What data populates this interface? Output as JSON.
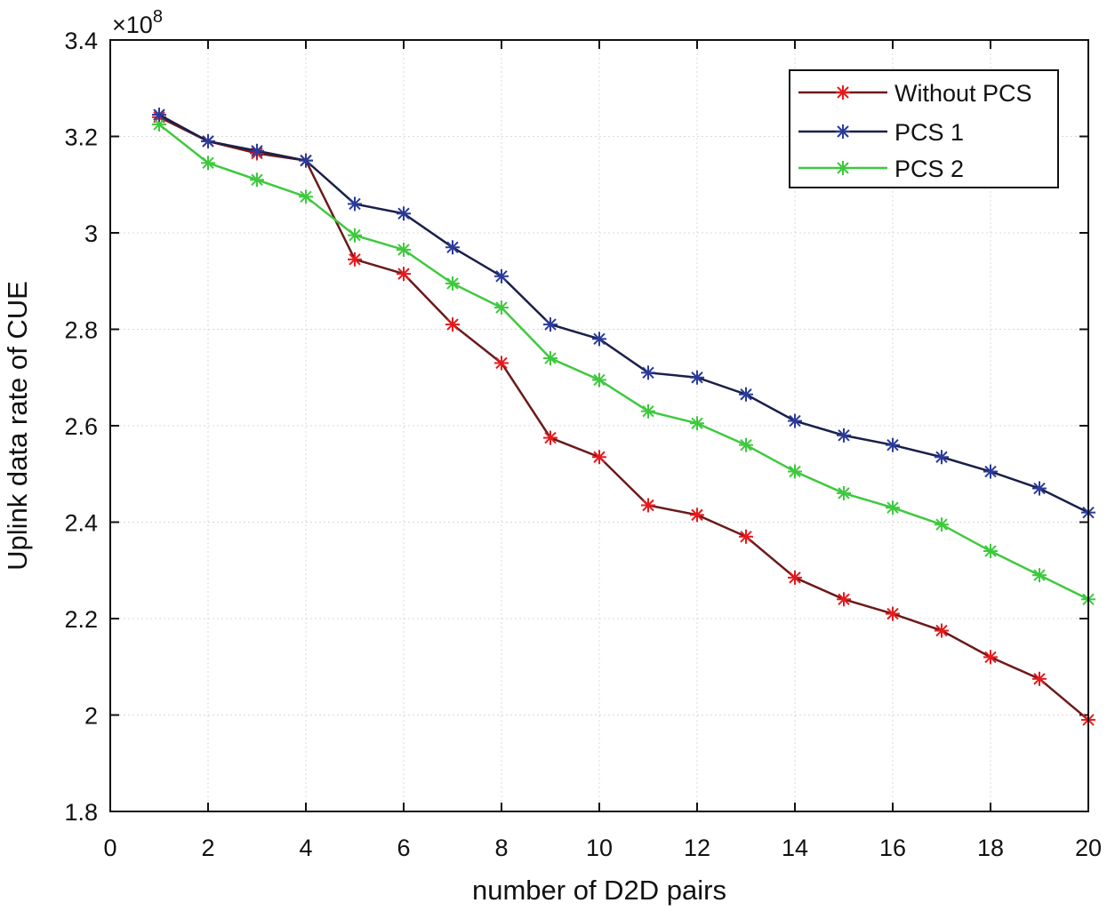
{
  "chart_data": {
    "type": "line",
    "title": "",
    "xlabel": "number of D2D pairs",
    "ylabel": "Uplink data rate of CUE",
    "y_multiplier_base": "×10",
    "y_multiplier_exp": "8",
    "xlim": [
      0,
      20
    ],
    "ylim": [
      1.8,
      3.4
    ],
    "xticks": [
      0,
      2,
      4,
      6,
      8,
      10,
      12,
      14,
      16,
      18,
      20
    ],
    "xtick_labels": [
      "0",
      "2",
      "4",
      "6",
      "8",
      "10",
      "12",
      "14",
      "16",
      "18",
      "20"
    ],
    "yticks": [
      1.8,
      2.0,
      2.2,
      2.4,
      2.6,
      2.8,
      3.0,
      3.2,
      3.4
    ],
    "ytick_labels": [
      "1.8",
      "2",
      "2.2",
      "2.4",
      "2.6",
      "2.8",
      "3",
      "3.2",
      "3.4"
    ],
    "grid": true,
    "legend_position": "top-right",
    "x": [
      1,
      2,
      3,
      4,
      5,
      6,
      7,
      8,
      9,
      10,
      11,
      12,
      13,
      14,
      15,
      16,
      17,
      18,
      19,
      20
    ],
    "series": [
      {
        "name": "Without PCS",
        "color": "#e8191c",
        "line_color": "#6b1a1a",
        "values": [
          3.24,
          3.19,
          3.165,
          3.15,
          2.945,
          2.915,
          2.81,
          2.73,
          2.575,
          2.535,
          2.435,
          2.415,
          2.37,
          2.285,
          2.24,
          2.21,
          2.175,
          2.12,
          2.075,
          1.99
        ]
      },
      {
        "name": "PCS 1",
        "color": "#2a3b9a",
        "line_color": "#1a1f4a",
        "values": [
          3.245,
          3.19,
          3.17,
          3.15,
          3.06,
          3.04,
          2.97,
          2.91,
          2.81,
          2.78,
          2.71,
          2.7,
          2.665,
          2.61,
          2.58,
          2.56,
          2.535,
          2.505,
          2.47,
          2.42
        ]
      },
      {
        "name": "PCS 2",
        "color": "#3ec93e",
        "line_color": "#3ec93e",
        "values": [
          3.225,
          3.145,
          3.11,
          3.075,
          2.995,
          2.965,
          2.895,
          2.845,
          2.74,
          2.695,
          2.63,
          2.605,
          2.56,
          2.505,
          2.46,
          2.43,
          2.395,
          2.34,
          2.29,
          2.24
        ]
      }
    ]
  }
}
